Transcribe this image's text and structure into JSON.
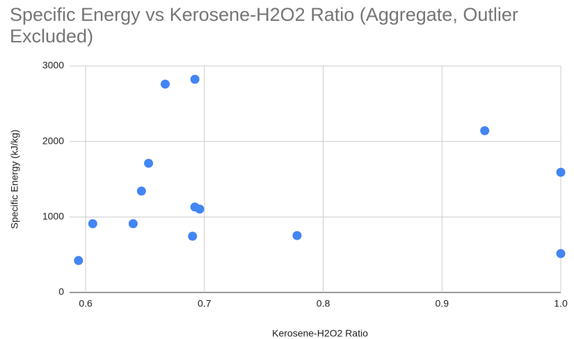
{
  "chart_data": {
    "type": "scatter",
    "title": "Specific Energy vs Kerosene-H2O2 Ratio (Aggregate, Outlier Excluded)",
    "x_label": "Kerosene-H2O2 Ratio",
    "y_label": "Specific Energy (kJ/kg)",
    "series": [
      {
        "color": "#4285f4",
        "x": [
          0.594,
          0.606,
          0.64,
          0.647,
          0.653,
          0.667,
          0.69,
          0.692,
          0.692,
          0.696,
          0.778,
          0.936,
          1.0,
          1.0
        ],
        "values": [
          423,
          911,
          911,
          1343,
          1711,
          2760,
          745,
          2824,
          1132,
          1104,
          754,
          2143,
          1592,
          515
        ]
      }
    ],
    "xlim": [
      0.5865,
      1.0
    ],
    "xticks": [
      0.6,
      0.7,
      0.8,
      0.9,
      {
        "value": 1,
        "label": "1.0"
      }
    ],
    "ylim": [
      0,
      3000
    ],
    "yticks": [
      0,
      1000,
      2000,
      3000
    ],
    "grid": true
  }
}
